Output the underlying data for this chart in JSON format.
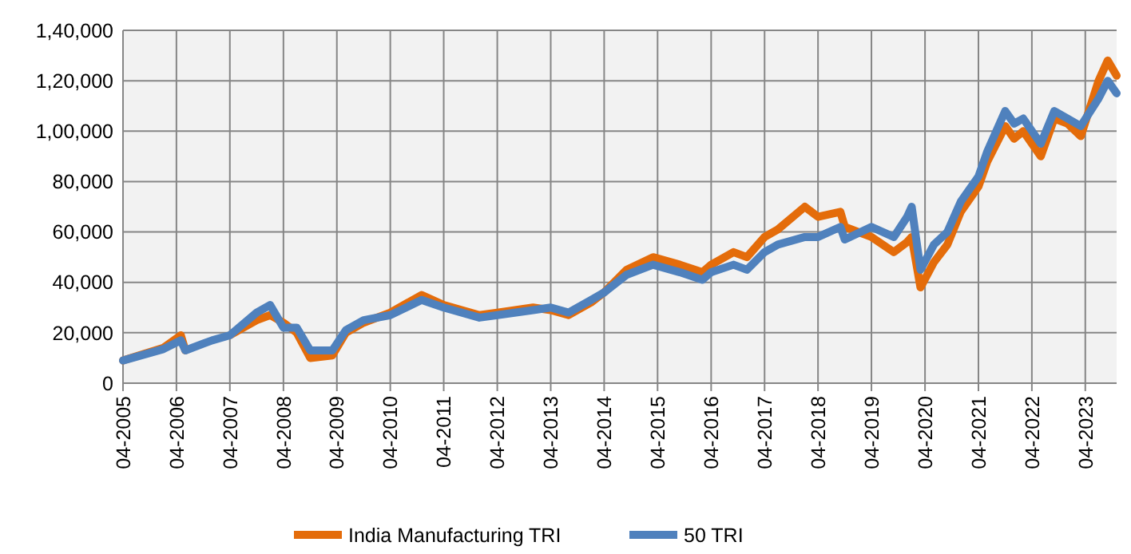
{
  "chart_data": {
    "type": "line",
    "x": [
      "2005-04",
      "2006-01",
      "2006-05",
      "2006-06",
      "2006-12",
      "2007-04",
      "2007-10",
      "2008-01",
      "2008-04",
      "2008-07",
      "2008-10",
      "2009-03",
      "2009-06",
      "2009-10",
      "2010-04",
      "2010-11",
      "2011-04",
      "2011-12",
      "2012-04",
      "2012-12",
      "2013-04",
      "2013-08",
      "2014-01",
      "2014-04",
      "2014-09",
      "2015-03",
      "2015-09",
      "2016-02",
      "2016-04",
      "2016-09",
      "2016-12",
      "2017-04",
      "2017-07",
      "2018-01",
      "2018-04",
      "2018-09",
      "2018-10",
      "2019-04",
      "2019-09",
      "2019-12",
      "2020-01",
      "2020-03",
      "2020-06",
      "2020-09",
      "2020-12",
      "2021-04",
      "2021-06",
      "2021-10",
      "2021-12",
      "2022-02",
      "2022-06",
      "2022-09",
      "2022-12",
      "2023-03",
      "2023-07",
      "2023-09",
      "2023-11"
    ],
    "series": [
      {
        "name": "India Manufacturing TRI",
        "color": "#e46c0a",
        "values": [
          9000,
          14000,
          19000,
          13000,
          null,
          19000,
          25000,
          27000,
          24000,
          20000,
          10000,
          11000,
          20000,
          24000,
          28000,
          35000,
          31000,
          27000,
          28000,
          30000,
          29000,
          27000,
          32000,
          36000,
          45000,
          50000,
          47000,
          44000,
          47000,
          52000,
          50000,
          58000,
          61000,
          70000,
          66000,
          68000,
          62000,
          58000,
          52000,
          56000,
          58000,
          38000,
          48000,
          55000,
          68000,
          78000,
          88000,
          102000,
          97000,
          100000,
          90000,
          105000,
          103000,
          98000,
          120000,
          128000,
          122000
        ]
      },
      {
        "name": "50 TRI",
        "color": "#4f81bd",
        "values": [
          9000,
          13500,
          17000,
          13000,
          17000,
          19000,
          28000,
          31000,
          22000,
          22000,
          13000,
          13000,
          21000,
          25000,
          27000,
          33000,
          30000,
          26000,
          27000,
          29000,
          30000,
          28000,
          33000,
          36000,
          43000,
          47000,
          44000,
          41000,
          44000,
          47000,
          45000,
          52000,
          55000,
          58000,
          58000,
          62000,
          57000,
          62000,
          58000,
          66000,
          70000,
          45000,
          55000,
          60000,
          72000,
          82000,
          92000,
          108000,
          103000,
          105000,
          95000,
          108000,
          105000,
          102000,
          113000,
          120000,
          115000
        ]
      }
    ],
    "xlim": [
      "2005-04",
      "2023-11"
    ],
    "xticks": [
      {
        "value": "2005-04",
        "label": "04-2005"
      },
      {
        "value": "2006-04",
        "label": "04-2006"
      },
      {
        "value": "2007-04",
        "label": "04-2007"
      },
      {
        "value": "2008-04",
        "label": "04-2008"
      },
      {
        "value": "2009-04",
        "label": "04-2009"
      },
      {
        "value": "2010-04",
        "label": "04-2010"
      },
      {
        "value": "2011-04",
        "label": "04-2011"
      },
      {
        "value": "2012-04",
        "label": "04-2012"
      },
      {
        "value": "2013-04",
        "label": "04-2013"
      },
      {
        "value": "2014-04",
        "label": "04-2014"
      },
      {
        "value": "2015-04",
        "label": "04-2015"
      },
      {
        "value": "2016-04",
        "label": "04-2016"
      },
      {
        "value": "2017-04",
        "label": "04-2017"
      },
      {
        "value": "2018-04",
        "label": "04-2018"
      },
      {
        "value": "2019-04",
        "label": "04-2019"
      },
      {
        "value": "2020-04",
        "label": "04-2020"
      },
      {
        "value": "2021-04",
        "label": "04-2021"
      },
      {
        "value": "2022-04",
        "label": "04-2022"
      },
      {
        "value": "2023-04",
        "label": "04-2023"
      }
    ],
    "ylim": [
      0,
      140000
    ],
    "yticks": [
      0,
      {
        "value": 20000,
        "label": "20,000"
      },
      {
        "value": 40000,
        "label": "40,000"
      },
      {
        "value": 60000,
        "label": "60,000"
      },
      {
        "value": 80000,
        "label": "80,000"
      },
      {
        "value": 100000,
        "label": "1,00,000"
      },
      {
        "value": 120000,
        "label": "1,20,000"
      },
      {
        "value": 140000,
        "label": "1,40,000"
      }
    ],
    "grid": true,
    "legend": "bottom",
    "marker": "none",
    "line_style": "solid"
  }
}
